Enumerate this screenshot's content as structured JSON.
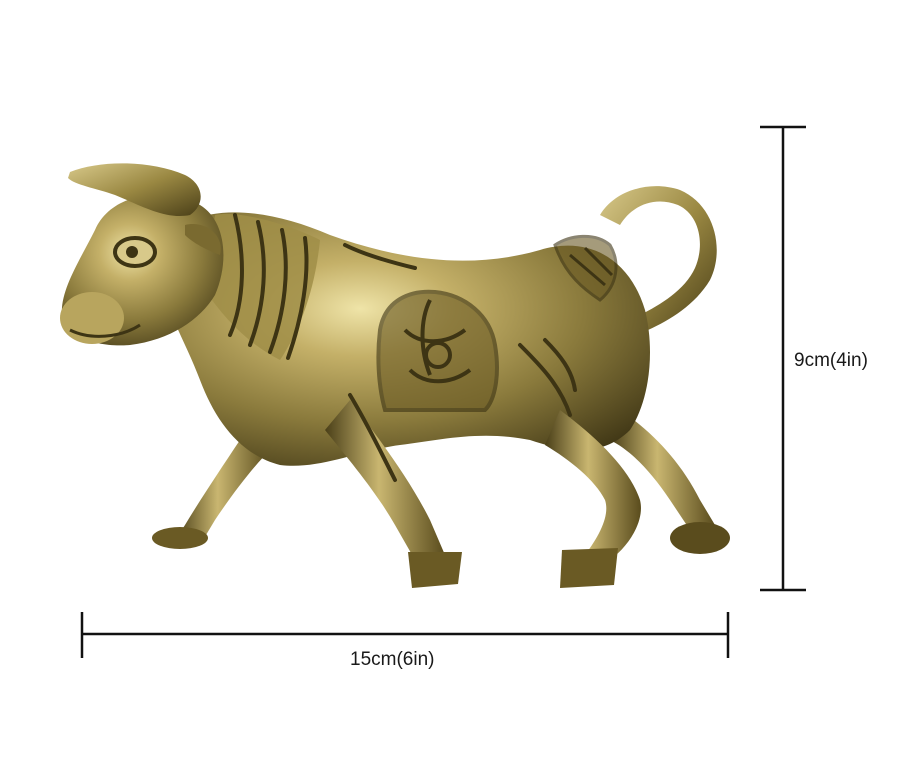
{
  "product": {
    "subject": "brass bull figurine",
    "material_color": "#8a7a3c",
    "highlight_color": "#efe4a8",
    "shadow_color": "#3d3414"
  },
  "dimensions": {
    "height_label": "9cm(4in)",
    "width_label": "15cm(6in)",
    "line_color": "#111111"
  }
}
